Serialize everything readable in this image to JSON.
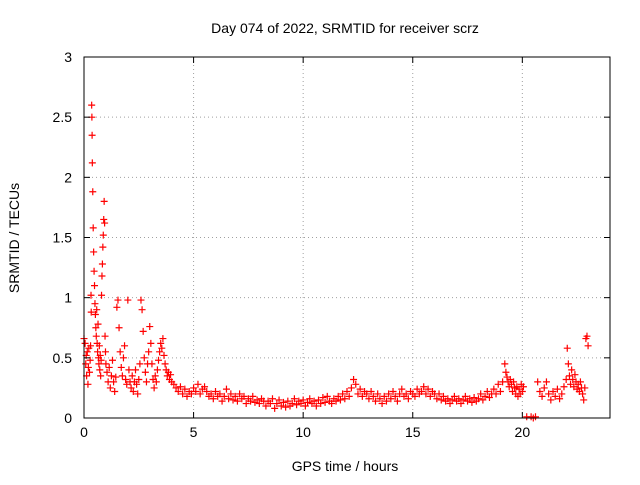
{
  "chart_data": {
    "type": "scatter",
    "title": "Day 074 of 2022, SRMTID for receiver scrz",
    "xlabel": "GPS time / hours",
    "ylabel": "SRMTID / TECUs",
    "xlim": [
      0,
      24
    ],
    "ylim": [
      0,
      3
    ],
    "x_ticks": [
      0,
      5,
      10,
      15,
      20
    ],
    "x_tick_labels": [
      "0",
      "5",
      "10",
      "15",
      "20"
    ],
    "y_ticks": [
      0,
      0.5,
      1,
      1.5,
      2,
      2.5,
      3
    ],
    "y_tick_labels": [
      "0",
      "0.5",
      "1",
      "1.5",
      "2",
      "2.5",
      "3"
    ],
    "grid": true,
    "marker": "+",
    "series": [
      {
        "name": "SRMTID",
        "color": "#ff0000",
        "points": [
          [
            0.0,
            0.66
          ],
          [
            0.05,
            0.62
          ],
          [
            0.08,
            0.45
          ],
          [
            0.1,
            0.52
          ],
          [
            0.12,
            0.35
          ],
          [
            0.15,
            0.55
          ],
          [
            0.18,
            0.28
          ],
          [
            0.2,
            0.42
          ],
          [
            0.22,
            0.58
          ],
          [
            0.25,
            0.38
          ],
          [
            0.28,
            0.48
          ],
          [
            0.3,
            0.6
          ],
          [
            0.32,
            1.02
          ],
          [
            0.33,
            0.88
          ],
          [
            0.35,
            2.6
          ],
          [
            0.36,
            2.5
          ],
          [
            0.37,
            2.35
          ],
          [
            0.38,
            2.12
          ],
          [
            0.4,
            1.88
          ],
          [
            0.42,
            1.58
          ],
          [
            0.44,
            1.38
          ],
          [
            0.46,
            1.22
          ],
          [
            0.48,
            1.1
          ],
          [
            0.5,
            0.95
          ],
          [
            0.52,
            0.86
          ],
          [
            0.54,
            0.75
          ],
          [
            0.56,
            0.68
          ],
          [
            0.58,
            0.9
          ],
          [
            0.6,
            0.62
          ],
          [
            0.62,
            0.55
          ],
          [
            0.64,
            0.78
          ],
          [
            0.66,
            0.5
          ],
          [
            0.68,
            0.45
          ],
          [
            0.7,
            0.6
          ],
          [
            0.72,
            0.4
          ],
          [
            0.74,
            0.52
          ],
          [
            0.76,
            0.35
          ],
          [
            0.78,
            0.48
          ],
          [
            0.8,
            1.02
          ],
          [
            0.82,
            1.18
          ],
          [
            0.84,
            1.28
          ],
          [
            0.86,
            1.42
          ],
          [
            0.88,
            1.52
          ],
          [
            0.9,
            1.65
          ],
          [
            0.92,
            1.8
          ],
          [
            0.94,
            1.62
          ],
          [
            0.96,
            0.68
          ],
          [
            0.98,
            0.55
          ],
          [
            1.0,
            0.45
          ],
          [
            1.05,
            0.38
          ],
          [
            1.1,
            0.3
          ],
          [
            1.15,
            0.42
          ],
          [
            1.2,
            0.25
          ],
          [
            1.25,
            0.35
          ],
          [
            1.3,
            0.48
          ],
          [
            1.35,
            0.3
          ],
          [
            1.4,
            0.22
          ],
          [
            1.45,
            0.34
          ],
          [
            1.5,
            0.92
          ],
          [
            1.55,
            0.98
          ],
          [
            1.6,
            0.75
          ],
          [
            1.65,
            0.55
          ],
          [
            1.7,
            0.42
          ],
          [
            1.75,
            0.35
          ],
          [
            1.8,
            0.5
          ],
          [
            1.85,
            0.6
          ],
          [
            1.9,
            0.32
          ],
          [
            1.95,
            0.28
          ],
          [
            2.0,
            0.98
          ],
          [
            2.05,
            0.4
          ],
          [
            2.1,
            0.3
          ],
          [
            2.15,
            0.25
          ],
          [
            2.2,
            0.35
          ],
          [
            2.25,
            0.22
          ],
          [
            2.3,
            0.3
          ],
          [
            2.35,
            0.4
          ],
          [
            2.4,
            0.28
          ],
          [
            2.45,
            0.2
          ],
          [
            2.5,
            0.32
          ],
          [
            2.55,
            0.45
          ],
          [
            2.6,
            0.98
          ],
          [
            2.65,
            0.9
          ],
          [
            2.7,
            0.72
          ],
          [
            2.75,
            0.5
          ],
          [
            2.8,
            0.38
          ],
          [
            2.85,
            0.3
          ],
          [
            2.9,
            0.45
          ],
          [
            2.95,
            0.55
          ],
          [
            3.0,
            0.76
          ],
          [
            3.05,
            0.62
          ],
          [
            3.1,
            0.45
          ],
          [
            3.15,
            0.32
          ],
          [
            3.2,
            0.25
          ],
          [
            3.25,
            0.35
          ],
          [
            3.3,
            0.3
          ],
          [
            3.35,
            0.4
          ],
          [
            3.4,
            0.48
          ],
          [
            3.45,
            0.55
          ],
          [
            3.5,
            0.62
          ],
          [
            3.55,
            0.58
          ],
          [
            3.6,
            0.66
          ],
          [
            3.65,
            0.52
          ],
          [
            3.7,
            0.45
          ],
          [
            3.75,
            0.4
          ],
          [
            3.8,
            0.35
          ],
          [
            3.85,
            0.38
          ],
          [
            3.9,
            0.32
          ],
          [
            3.95,
            0.36
          ],
          [
            4.0,
            0.3
          ],
          [
            4.1,
            0.28
          ],
          [
            4.2,
            0.25
          ],
          [
            4.3,
            0.22
          ],
          [
            4.4,
            0.26
          ],
          [
            4.5,
            0.2
          ],
          [
            4.6,
            0.24
          ],
          [
            4.7,
            0.18
          ],
          [
            4.8,
            0.22
          ],
          [
            4.9,
            0.2
          ],
          [
            5.0,
            0.25
          ],
          [
            5.1,
            0.22
          ],
          [
            5.2,
            0.28
          ],
          [
            5.3,
            0.2
          ],
          [
            5.4,
            0.24
          ],
          [
            5.5,
            0.26
          ],
          [
            5.6,
            0.22
          ],
          [
            5.7,
            0.18
          ],
          [
            5.8,
            0.2
          ],
          [
            5.9,
            0.16
          ],
          [
            6.0,
            0.22
          ],
          [
            6.1,
            0.18
          ],
          [
            6.2,
            0.2
          ],
          [
            6.3,
            0.14
          ],
          [
            6.4,
            0.18
          ],
          [
            6.5,
            0.24
          ],
          [
            6.6,
            0.16
          ],
          [
            6.7,
            0.2
          ],
          [
            6.8,
            0.15
          ],
          [
            6.9,
            0.18
          ],
          [
            7.0,
            0.14
          ],
          [
            7.1,
            0.2
          ],
          [
            7.2,
            0.16
          ],
          [
            7.3,
            0.18
          ],
          [
            7.4,
            0.12
          ],
          [
            7.5,
            0.16
          ],
          [
            7.6,
            0.14
          ],
          [
            7.7,
            0.18
          ],
          [
            7.8,
            0.13
          ],
          [
            7.9,
            0.15
          ],
          [
            8.0,
            0.12
          ],
          [
            8.1,
            0.16
          ],
          [
            8.2,
            0.14
          ],
          [
            8.3,
            0.1
          ],
          [
            8.4,
            0.14
          ],
          [
            8.5,
            0.12
          ],
          [
            8.6,
            0.16
          ],
          [
            8.7,
            0.08
          ],
          [
            8.8,
            0.12
          ],
          [
            8.9,
            0.15
          ],
          [
            9.0,
            0.1
          ],
          [
            9.1,
            0.13
          ],
          [
            9.2,
            0.09
          ],
          [
            9.3,
            0.14
          ],
          [
            9.4,
            0.1
          ],
          [
            9.5,
            0.12
          ],
          [
            9.6,
            0.16
          ],
          [
            9.7,
            0.11
          ],
          [
            9.8,
            0.14
          ],
          [
            9.9,
            0.12
          ],
          [
            10.0,
            0.15
          ],
          [
            10.1,
            0.1
          ],
          [
            10.2,
            0.13
          ],
          [
            10.3,
            0.16
          ],
          [
            10.4,
            0.12
          ],
          [
            10.5,
            0.14
          ],
          [
            10.6,
            0.1
          ],
          [
            10.7,
            0.15
          ],
          [
            10.8,
            0.12
          ],
          [
            10.9,
            0.17
          ],
          [
            11.0,
            0.13
          ],
          [
            11.1,
            0.18
          ],
          [
            11.2,
            0.14
          ],
          [
            11.3,
            0.12
          ],
          [
            11.4,
            0.16
          ],
          [
            11.5,
            0.14
          ],
          [
            11.6,
            0.18
          ],
          [
            11.7,
            0.15
          ],
          [
            11.8,
            0.2
          ],
          [
            11.9,
            0.16
          ],
          [
            12.0,
            0.22
          ],
          [
            12.1,
            0.18
          ],
          [
            12.2,
            0.25
          ],
          [
            12.3,
            0.32
          ],
          [
            12.4,
            0.28
          ],
          [
            12.5,
            0.2
          ],
          [
            12.6,
            0.24
          ],
          [
            12.7,
            0.18
          ],
          [
            12.8,
            0.22
          ],
          [
            12.9,
            0.2
          ],
          [
            13.0,
            0.16
          ],
          [
            13.1,
            0.22
          ],
          [
            13.2,
            0.18
          ],
          [
            13.3,
            0.14
          ],
          [
            13.4,
            0.2
          ],
          [
            13.5,
            0.16
          ],
          [
            13.6,
            0.12
          ],
          [
            13.7,
            0.18
          ],
          [
            13.8,
            0.14
          ],
          [
            13.9,
            0.2
          ],
          [
            14.0,
            0.16
          ],
          [
            14.1,
            0.22
          ],
          [
            14.2,
            0.18
          ],
          [
            14.3,
            0.14
          ],
          [
            14.4,
            0.2
          ],
          [
            14.5,
            0.24
          ],
          [
            14.6,
            0.18
          ],
          [
            14.7,
            0.2
          ],
          [
            14.8,
            0.16
          ],
          [
            14.9,
            0.22
          ],
          [
            15.0,
            0.2
          ],
          [
            15.1,
            0.18
          ],
          [
            15.2,
            0.24
          ],
          [
            15.3,
            0.2
          ],
          [
            15.4,
            0.22
          ],
          [
            15.5,
            0.26
          ],
          [
            15.6,
            0.2
          ],
          [
            15.7,
            0.24
          ],
          [
            15.8,
            0.18
          ],
          [
            15.9,
            0.22
          ],
          [
            16.0,
            0.2
          ],
          [
            16.1,
            0.16
          ],
          [
            16.2,
            0.2
          ],
          [
            16.3,
            0.15
          ],
          [
            16.4,
            0.18
          ],
          [
            16.5,
            0.14
          ],
          [
            16.6,
            0.16
          ],
          [
            16.7,
            0.12
          ],
          [
            16.8,
            0.15
          ],
          [
            16.9,
            0.18
          ],
          [
            17.0,
            0.14
          ],
          [
            17.1,
            0.16
          ],
          [
            17.2,
            0.12
          ],
          [
            17.3,
            0.15
          ],
          [
            17.4,
            0.18
          ],
          [
            17.5,
            0.14
          ],
          [
            17.6,
            0.16
          ],
          [
            17.7,
            0.13
          ],
          [
            17.8,
            0.17
          ],
          [
            17.9,
            0.14
          ],
          [
            18.0,
            0.16
          ],
          [
            18.1,
            0.2
          ],
          [
            18.2,
            0.15
          ],
          [
            18.3,
            0.18
          ],
          [
            18.4,
            0.22
          ],
          [
            18.5,
            0.17
          ],
          [
            18.6,
            0.2
          ],
          [
            18.7,
            0.24
          ],
          [
            18.8,
            0.2
          ],
          [
            18.9,
            0.28
          ],
          [
            19.0,
            0.22
          ],
          [
            19.1,
            0.3
          ],
          [
            19.2,
            0.45
          ],
          [
            19.25,
            0.38
          ],
          [
            19.3,
            0.34
          ],
          [
            19.35,
            0.3
          ],
          [
            19.4,
            0.26
          ],
          [
            19.45,
            0.32
          ],
          [
            19.5,
            0.28
          ],
          [
            19.55,
            0.22
          ],
          [
            19.6,
            0.3
          ],
          [
            19.65,
            0.25
          ],
          [
            19.7,
            0.2
          ],
          [
            19.75,
            0.26
          ],
          [
            19.8,
            0.18
          ],
          [
            19.85,
            0.24
          ],
          [
            19.9,
            0.2
          ],
          [
            19.95,
            0.28
          ],
          [
            20.0,
            0.22
          ],
          [
            20.05,
            0.26
          ],
          [
            20.2,
            0.01
          ],
          [
            20.4,
            0.01
          ],
          [
            20.5,
            0.0
          ],
          [
            20.6,
            0.01
          ],
          [
            20.7,
            0.3
          ],
          [
            20.8,
            0.22
          ],
          [
            20.9,
            0.18
          ],
          [
            21.0,
            0.25
          ],
          [
            21.1,
            0.3
          ],
          [
            21.2,
            0.2
          ],
          [
            21.3,
            0.15
          ],
          [
            21.4,
            0.22
          ],
          [
            21.5,
            0.18
          ],
          [
            21.6,
            0.24
          ],
          [
            21.7,
            0.16
          ],
          [
            21.8,
            0.2
          ],
          [
            21.9,
            0.26
          ],
          [
            22.0,
            0.32
          ],
          [
            22.05,
            0.58
          ],
          [
            22.1,
            0.45
          ],
          [
            22.15,
            0.35
          ],
          [
            22.2,
            0.28
          ],
          [
            22.25,
            0.4
          ],
          [
            22.3,
            0.32
          ],
          [
            22.35,
            0.26
          ],
          [
            22.4,
            0.36
          ],
          [
            22.45,
            0.3
          ],
          [
            22.5,
            0.24
          ],
          [
            22.55,
            0.28
          ],
          [
            22.6,
            0.22
          ],
          [
            22.65,
            0.3
          ],
          [
            22.7,
            0.25
          ],
          [
            22.75,
            0.2
          ],
          [
            22.8,
            0.15
          ],
          [
            22.85,
            0.25
          ],
          [
            22.9,
            0.66
          ],
          [
            22.95,
            0.68
          ],
          [
            23.0,
            0.6
          ]
        ]
      }
    ]
  }
}
